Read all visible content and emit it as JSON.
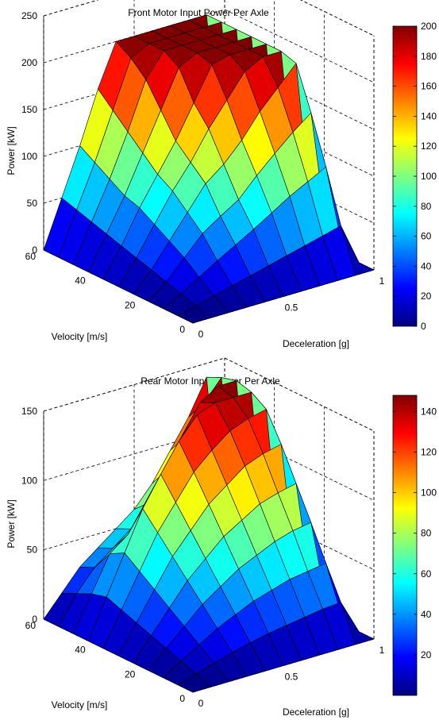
{
  "chart_data": [
    {
      "type": "surface",
      "title": "Front Motor Input Power Per Axle",
      "xlabel": "Deceleration [g]",
      "ylabel": "Velocity [m/s]",
      "zlabel": "Power [kW]",
      "xlim": [
        0,
        1
      ],
      "ylim": [
        0,
        60
      ],
      "zlim": [
        0,
        250
      ],
      "x_ticks": [
        "0",
        "0.5",
        "1"
      ],
      "y_ticks": [
        "0",
        "20",
        "40",
        "60"
      ],
      "z_ticks": [
        "0",
        "50",
        "100",
        "150",
        "200",
        "250"
      ],
      "colorbar": {
        "min": 0,
        "max": 200,
        "ticks": [
          "0",
          "20",
          "40",
          "60",
          "80",
          "100",
          "120",
          "140",
          "160",
          "180",
          "200"
        ]
      },
      "colormap": "jet",
      "grid": true,
      "surface": {
        "x": [
          0,
          0.1,
          0.2,
          0.3,
          0.4,
          0.5,
          0.6,
          0.7,
          0.8,
          0.9,
          1
        ],
        "y": [
          0,
          6,
          12,
          18,
          24,
          30,
          36,
          42,
          48,
          54,
          60
        ],
        "z": [
          [
            0,
            0,
            0,
            0,
            0,
            0,
            0,
            0,
            0,
            0,
            0
          ],
          [
            0,
            5,
            10,
            15,
            20,
            25,
            30,
            35,
            40,
            45,
            0
          ],
          [
            0,
            10,
            22,
            34,
            45,
            56,
            68,
            80,
            90,
            100,
            0
          ],
          [
            0,
            15,
            35,
            55,
            68,
            80,
            100,
            118,
            135,
            150,
            0
          ],
          [
            0,
            20,
            45,
            70,
            95,
            110,
            130,
            155,
            175,
            195,
            0
          ],
          [
            0,
            25,
            55,
            85,
            110,
            140,
            165,
            190,
            200,
            200,
            0
          ],
          [
            0,
            30,
            65,
            95,
            125,
            160,
            195,
            200,
            200,
            200,
            0
          ],
          [
            0,
            35,
            70,
            110,
            150,
            190,
            200,
            200,
            200,
            200,
            0
          ],
          [
            0,
            40,
            80,
            125,
            175,
            200,
            200,
            200,
            200,
            200,
            0
          ],
          [
            0,
            45,
            90,
            140,
            190,
            200,
            200,
            200,
            200,
            200,
            0
          ],
          [
            0,
            50,
            100,
            155,
            200,
            200,
            200,
            200,
            200,
            200,
            0
          ]
        ]
      }
    },
    {
      "type": "surface",
      "title": "Rear Motor Input Power Per Axle",
      "xlabel": "Deceleration [g]",
      "ylabel": "Velocity [m/s]",
      "zlabel": "Power [kW]",
      "xlim": [
        0,
        1
      ],
      "ylim": [
        0,
        60
      ],
      "zlim": [
        0,
        150
      ],
      "x_ticks": [
        "0",
        "0.5",
        "1"
      ],
      "y_ticks": [
        "0",
        "20",
        "40",
        "60"
      ],
      "z_ticks": [
        "0",
        "50",
        "100",
        "150"
      ],
      "colorbar": {
        "min": 0,
        "max": 148,
        "ticks": [
          "20",
          "40",
          "60",
          "80",
          "100",
          "120",
          "140"
        ]
      },
      "colormap": "jet",
      "grid": true,
      "surface": {
        "x": [
          0,
          0.1,
          0.2,
          0.3,
          0.4,
          0.5,
          0.6,
          0.7,
          0.8,
          0.9,
          1
        ],
        "y": [
          0,
          6,
          12,
          18,
          24,
          30,
          36,
          42,
          48,
          54,
          60
        ],
        "z": [
          [
            0,
            0,
            0,
            0,
            0,
            0,
            0,
            0,
            0,
            0,
            0
          ],
          [
            0,
            4,
            8,
            12,
            15,
            18,
            20,
            22,
            24,
            25,
            0
          ],
          [
            0,
            8,
            16,
            24,
            30,
            36,
            40,
            44,
            46,
            48,
            0
          ],
          [
            0,
            12,
            24,
            36,
            45,
            54,
            60,
            66,
            70,
            72,
            0
          ],
          [
            0,
            16,
            32,
            48,
            60,
            72,
            80,
            88,
            92,
            95,
            0
          ],
          [
            0,
            20,
            40,
            60,
            75,
            90,
            100,
            110,
            115,
            118,
            0
          ],
          [
            0,
            24,
            48,
            72,
            90,
            108,
            120,
            130,
            135,
            138,
            0
          ],
          [
            0,
            28,
            56,
            84,
            105,
            125,
            140,
            145,
            145,
            145,
            0
          ],
          [
            0,
            25,
            50,
            60,
            80,
            100,
            120,
            140,
            148,
            148,
            0
          ],
          [
            0,
            20,
            35,
            45,
            55,
            70,
            90,
            110,
            130,
            145,
            0
          ],
          [
            0,
            15,
            30,
            40,
            50,
            60,
            75,
            95,
            115,
            140,
            0
          ]
        ]
      }
    }
  ]
}
